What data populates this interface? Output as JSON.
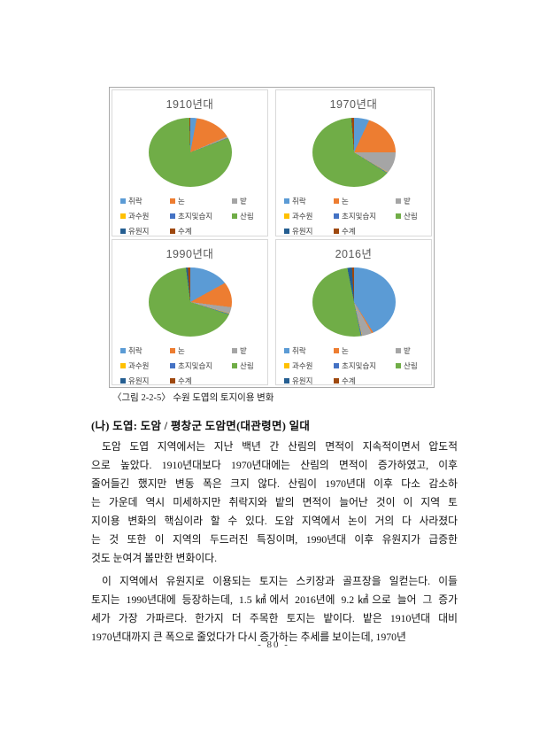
{
  "page": {
    "caption": "〈그림 2-2-5〉 수원 도엽의 토지이용 변화",
    "heading": "(나) 도엽: 도암 / 평창군 도암면(대관령면) 일대",
    "paragraphs": [
      {
        "lines": [
          "도암 도엽 지역에서는 지난 백년 간 산림의 면적이 지속적이면서 압도적",
          "으로 높았다. 1910년대보다 1970년대에는 산림의 면적이 증가하였고, 이후",
          "줄어들긴 했지만 변동 폭은 크지 않다. 산림이 1970년대 이후 다소 감소하",
          "는 가운데 역시 미세하지만 취락지와 밭의 면적이 늘어난 것이 이 지역 토",
          "지이용 변화의 핵심이라 할 수 있다. 도암 지역에서 논이 거의 다 사라졌다",
          "는 것 또한 이 지역의 두드러진 특징이며, 1990년대 이후 유원지가 급증한",
          "것도 눈여겨 볼만한 변화이다."
        ]
      },
      {
        "lines": [
          "이 지역에서 유원지로 이용되는 토지는 스키장과 골프장을 일컫는다. 이들",
          "토지는 1990년대에 등장하는데, 1.5㎢에서 2016년에 9.2㎢으로 늘어 그 증가",
          "세가 가장 가파르다. 한가지 더 주목한 토지는 밭이다. 밭은 1910년대 대비",
          "1970년대까지 큰 폭으로 줄었다가 다시 증가하는 추세를 보이는데, 1970년"
        ]
      }
    ],
    "page_number": "- 80 -"
  },
  "legend_labels": [
    "취락",
    "논",
    "밭",
    "과수원",
    "초지및습지",
    "산림",
    "유원지",
    "수계"
  ],
  "series_colors": [
    "#5B9BD5",
    "#ED7D31",
    "#A5A5A5",
    "#FFC000",
    "#4472C4",
    "#70AD47",
    "#255E91",
    "#9E480E"
  ],
  "chart_data": [
    {
      "type": "pie",
      "title": "1910년대",
      "categories": [
        "취락",
        "논",
        "밭",
        "과수원",
        "초지및습지",
        "산림",
        "유원지",
        "수계"
      ],
      "values": [
        3,
        15.5,
        0.5,
        0.1,
        0.2,
        80.2,
        0.1,
        0.4
      ],
      "legend_position": "bottom",
      "title_color": "#595959"
    },
    {
      "type": "pie",
      "title": "1970년대",
      "categories": [
        "취락",
        "논",
        "밭",
        "과수원",
        "초지및습지",
        "산림",
        "유원지",
        "수계"
      ],
      "values": [
        7,
        18,
        8.5,
        0.2,
        0.3,
        64.7,
        0.1,
        1.2
      ],
      "legend_position": "bottom",
      "title_color": "#595959"
    },
    {
      "type": "pie",
      "title": "1990년대",
      "categories": [
        "취락",
        "논",
        "밭",
        "과수원",
        "초지및습지",
        "산림",
        "유원지",
        "수계"
      ],
      "values": [
        17,
        10,
        2.5,
        0.2,
        0.3,
        68,
        0.8,
        1.2
      ],
      "legend_position": "bottom",
      "title_color": "#595959"
    },
    {
      "type": "pie",
      "title": "2016년",
      "categories": [
        "취락",
        "논",
        "밭",
        "과수원",
        "초지및습지",
        "산림",
        "유원지",
        "수계"
      ],
      "values": [
        41,
        0.7,
        4.5,
        0.2,
        0.5,
        50,
        2.1,
        1.0
      ],
      "legend_position": "bottom",
      "title_color": "#595959"
    }
  ]
}
